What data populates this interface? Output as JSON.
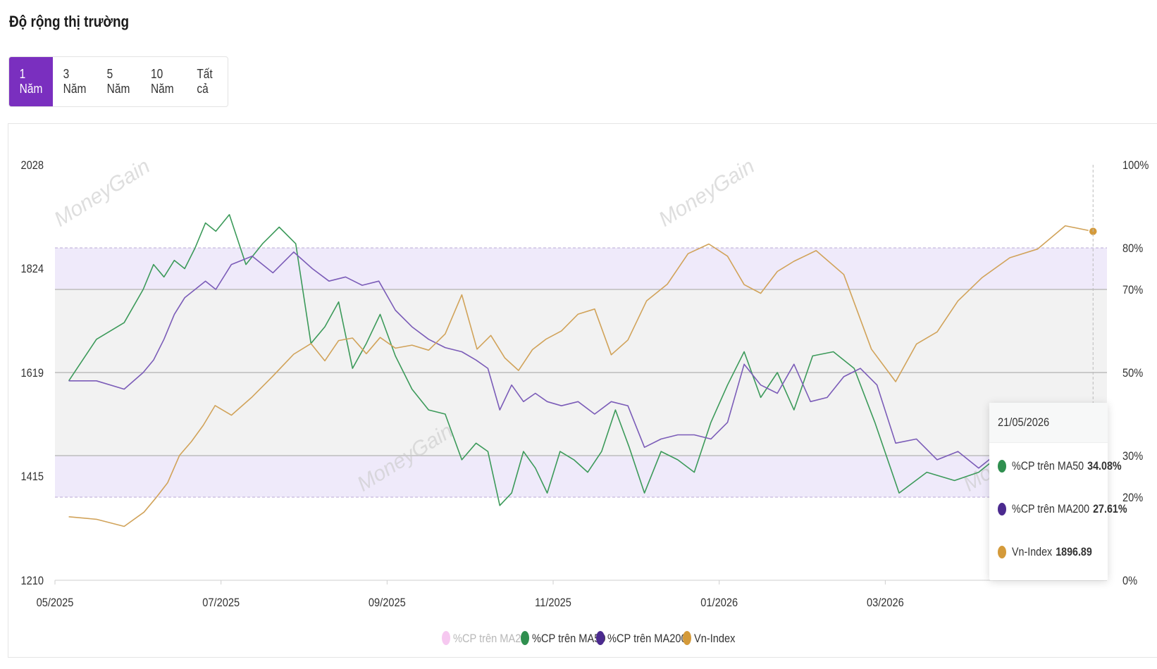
{
  "header": {
    "title": "Độ rộng thị trường"
  },
  "range_tabs": [
    {
      "label": "1 Năm",
      "active": true
    },
    {
      "label": "3 Năm",
      "active": false
    },
    {
      "label": "5 Năm",
      "active": false
    },
    {
      "label": "10 Năm",
      "active": false
    },
    {
      "label": "Tất cả",
      "active": false
    }
  ],
  "watermark": "MoneyGain",
  "colors": {
    "accent": "#7a2fbf",
    "ma20": "#f6c8f0",
    "ma50": "#3c9a5a",
    "ma200": "#7b5cb8",
    "vnindex": "#d1a35a",
    "band_inner": "#f2f2f2",
    "band_outer": "#efeafa"
  },
  "chart_data": {
    "type": "line",
    "x_ticks": [
      "05/2025",
      "07/2025",
      "09/2025",
      "11/2025",
      "01/2026",
      "03/2026"
    ],
    "x_range": [
      "05/2025",
      "05/2026"
    ],
    "y_left": {
      "ticks": [
        "2028",
        "1824",
        "1619",
        "1415",
        "1210"
      ],
      "range": [
        1210,
        2028
      ],
      "label": ""
    },
    "y_right": {
      "ticks": [
        "100%",
        "80%",
        "70%",
        "50%",
        "30%",
        "20%",
        "0%"
      ],
      "range": [
        0,
        100
      ],
      "label": ""
    },
    "bands_percent": [
      [
        20,
        80
      ],
      [
        30,
        70
      ]
    ],
    "reference_lines_percent": [
      30,
      50,
      70
    ],
    "legend": {
      "position": "bottom",
      "items": [
        {
          "name": "%CP trên MA20",
          "color": "#f6c8f0",
          "hidden": true
        },
        {
          "name": "%CP trên MA50",
          "color": "#2f8f4f",
          "hidden": false
        },
        {
          "name": "%CP trên MA200",
          "color": "#4b2a8f",
          "hidden": false
        },
        {
          "name": "Vn-Index",
          "color": "#d49a3a",
          "hidden": false
        }
      ]
    },
    "series": [
      {
        "name": "%CP trên MA50",
        "axis": "right",
        "unit": "%",
        "points": [
          [
            "05/2025",
            48
          ],
          [
            "05/2025",
            58
          ],
          [
            "05/2025",
            62
          ],
          [
            "06/2025",
            70
          ],
          [
            "06/2025",
            76
          ],
          [
            "06/2025",
            73
          ],
          [
            "06/2025",
            77
          ],
          [
            "06/2025",
            75
          ],
          [
            "06/2025",
            80
          ],
          [
            "06/2025",
            86
          ],
          [
            "06/2025",
            84
          ],
          [
            "07/2025",
            88
          ],
          [
            "07/2025",
            76
          ],
          [
            "07/2025",
            81
          ],
          [
            "07/2025",
            85
          ],
          [
            "07/2025",
            81
          ],
          [
            "08/2025",
            57
          ],
          [
            "08/2025",
            61
          ],
          [
            "08/2025",
            67
          ],
          [
            "08/2025",
            51
          ],
          [
            "08/2025",
            57
          ],
          [
            "08/2025",
            64
          ],
          [
            "09/2025",
            54
          ],
          [
            "09/2025",
            46
          ],
          [
            "09/2025",
            41
          ],
          [
            "09/2025",
            40
          ],
          [
            "09/2025",
            29
          ],
          [
            "10/2025",
            33
          ],
          [
            "10/2025",
            31
          ],
          [
            "10/2025",
            18
          ],
          [
            "10/2025",
            21
          ],
          [
            "10/2025",
            31
          ],
          [
            "10/2025",
            27
          ],
          [
            "10/2025",
            21
          ],
          [
            "11/2025",
            31
          ],
          [
            "11/2025",
            29
          ],
          [
            "11/2025",
            26
          ],
          [
            "11/2025",
            31
          ],
          [
            "11/2025",
            41
          ],
          [
            "11/2025",
            32
          ],
          [
            "12/2025",
            21
          ],
          [
            "12/2025",
            31
          ],
          [
            "12/2025",
            29
          ],
          [
            "12/2025",
            26
          ],
          [
            "12/2025",
            38
          ],
          [
            "01/2026",
            47
          ],
          [
            "01/2026",
            55
          ],
          [
            "01/2026",
            44
          ],
          [
            "01/2026",
            50
          ],
          [
            "01/2026",
            41
          ],
          [
            "02/2026",
            54
          ],
          [
            "02/2026",
            55
          ],
          [
            "02/2026",
            51
          ],
          [
            "02/2026",
            38
          ],
          [
            "03/2026",
            21
          ],
          [
            "03/2026",
            26
          ],
          [
            "03/2026",
            24
          ],
          [
            "04/2026",
            26
          ],
          [
            "04/2026",
            30
          ],
          [
            "04/2026",
            27
          ],
          [
            "04/2026",
            37
          ],
          [
            "05/2026",
            37
          ],
          [
            "05/2026",
            34.08
          ]
        ]
      },
      {
        "name": "%CP trên MA200",
        "axis": "right",
        "unit": "%",
        "points": [
          [
            "05/2025",
            48
          ],
          [
            "05/2025",
            48
          ],
          [
            "05/2025",
            46
          ],
          [
            "06/2025",
            50
          ],
          [
            "06/2025",
            53
          ],
          [
            "06/2025",
            58
          ],
          [
            "06/2025",
            64
          ],
          [
            "06/2025",
            68
          ],
          [
            "06/2025",
            70
          ],
          [
            "06/2025",
            72
          ],
          [
            "06/2025",
            70
          ],
          [
            "07/2025",
            76
          ],
          [
            "07/2025",
            78
          ],
          [
            "07/2025",
            74
          ],
          [
            "07/2025",
            79
          ],
          [
            "08/2025",
            75
          ],
          [
            "08/2025",
            72
          ],
          [
            "08/2025",
            73
          ],
          [
            "08/2025",
            71
          ],
          [
            "08/2025",
            72
          ],
          [
            "09/2025",
            65
          ],
          [
            "09/2025",
            61
          ],
          [
            "09/2025",
            58
          ],
          [
            "09/2025",
            56
          ],
          [
            "09/2025",
            55
          ],
          [
            "10/2025",
            53
          ],
          [
            "10/2025",
            51
          ],
          [
            "10/2025",
            41
          ],
          [
            "10/2025",
            47
          ],
          [
            "10/2025",
            43
          ],
          [
            "10/2025",
            45
          ],
          [
            "10/2025",
            43
          ],
          [
            "11/2025",
            42
          ],
          [
            "11/2025",
            43
          ],
          [
            "11/2025",
            40
          ],
          [
            "11/2025",
            43
          ],
          [
            "11/2025",
            42
          ],
          [
            "12/2025",
            32
          ],
          [
            "12/2025",
            34
          ],
          [
            "12/2025",
            35
          ],
          [
            "12/2025",
            35
          ],
          [
            "12/2025",
            34
          ],
          [
            "01/2026",
            38
          ],
          [
            "01/2026",
            52
          ],
          [
            "01/2026",
            47
          ],
          [
            "01/2026",
            45
          ],
          [
            "01/2026",
            52
          ],
          [
            "02/2026",
            43
          ],
          [
            "02/2026",
            44
          ],
          [
            "02/2026",
            49
          ],
          [
            "02/2026",
            51
          ],
          [
            "02/2026",
            47
          ],
          [
            "03/2026",
            33
          ],
          [
            "03/2026",
            34
          ],
          [
            "03/2026",
            29
          ],
          [
            "03/2026",
            31
          ],
          [
            "04/2026",
            27
          ],
          [
            "04/2026",
            31
          ],
          [
            "04/2026",
            28
          ],
          [
            "04/2026",
            32
          ],
          [
            "05/2026",
            30
          ],
          [
            "05/2026",
            27.61
          ]
        ]
      },
      {
        "name": "Vn-Index",
        "axis": "left",
        "unit": "",
        "points": [
          [
            "05/2025",
            1335
          ],
          [
            "05/2025",
            1330
          ],
          [
            "05/2025",
            1316
          ],
          [
            "06/2025",
            1344
          ],
          [
            "06/2025",
            1372
          ],
          [
            "06/2025",
            1402
          ],
          [
            "06/2025",
            1456
          ],
          [
            "06/2025",
            1483
          ],
          [
            "06/2025",
            1515
          ],
          [
            "06/2025",
            1554
          ],
          [
            "07/2025",
            1535
          ],
          [
            "07/2025",
            1571
          ],
          [
            "07/2025",
            1612
          ],
          [
            "07/2025",
            1655
          ],
          [
            "08/2025",
            1676
          ],
          [
            "08/2025",
            1642
          ],
          [
            "08/2025",
            1682
          ],
          [
            "08/2025",
            1687
          ],
          [
            "08/2025",
            1656
          ],
          [
            "08/2025",
            1688
          ],
          [
            "09/2025",
            1667
          ],
          [
            "09/2025",
            1673
          ],
          [
            "09/2025",
            1663
          ],
          [
            "09/2025",
            1695
          ],
          [
            "09/2025",
            1772
          ],
          [
            "10/2025",
            1665
          ],
          [
            "10/2025",
            1692
          ],
          [
            "10/2025",
            1648
          ],
          [
            "10/2025",
            1623
          ],
          [
            "10/2025",
            1664
          ],
          [
            "10/2025",
            1685
          ],
          [
            "11/2025",
            1701
          ],
          [
            "11/2025",
            1734
          ],
          [
            "11/2025",
            1744
          ],
          [
            "11/2025",
            1654
          ],
          [
            "11/2025",
            1683
          ],
          [
            "12/2025",
            1760
          ],
          [
            "12/2025",
            1793
          ],
          [
            "12/2025",
            1853
          ],
          [
            "12/2025",
            1872
          ],
          [
            "01/2026",
            1848
          ],
          [
            "01/2026",
            1792
          ],
          [
            "01/2026",
            1775
          ],
          [
            "01/2026",
            1818
          ],
          [
            "01/2026",
            1838
          ],
          [
            "02/2026",
            1859
          ],
          [
            "02/2026",
            1812
          ],
          [
            "02/2026",
            1665
          ],
          [
            "03/2026",
            1601
          ],
          [
            "03/2026",
            1675
          ],
          [
            "03/2026",
            1699
          ],
          [
            "03/2026",
            1760
          ],
          [
            "04/2026",
            1806
          ],
          [
            "04/2026",
            1845
          ],
          [
            "04/2026",
            1862
          ],
          [
            "05/2026",
            1908
          ],
          [
            "05/2026",
            1896.89
          ]
        ]
      }
    ],
    "tooltip": {
      "date": "21/05/2026",
      "rows": [
        {
          "label": "%CP trên MA50",
          "value": "34.08%",
          "color": "#2f8f4f"
        },
        {
          "label": "%CP trên MA200",
          "value": "27.61%",
          "color": "#4b2a8f"
        },
        {
          "label": "Vn-Index",
          "value": "1896.89",
          "color": "#d49a3a"
        }
      ]
    }
  }
}
